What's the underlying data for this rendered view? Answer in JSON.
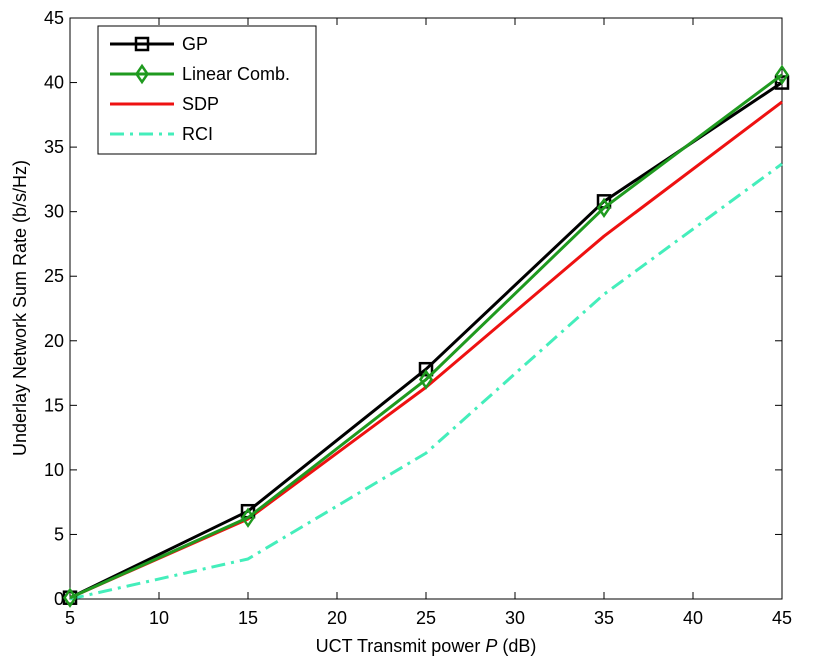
{
  "chart_data": {
    "type": "line",
    "title": "",
    "xlabel": "UCT Transmit power",
    "xlabel_var": "P",
    "xlabel_unit": "(dB)",
    "ylabel": "Underlay Network Sum Rate (b/s/Hz)",
    "xlim": [
      5,
      45
    ],
    "ylim": [
      0,
      45
    ],
    "xticks": [
      5,
      10,
      15,
      20,
      25,
      30,
      35,
      40,
      45
    ],
    "yticks": [
      0,
      5,
      10,
      15,
      20,
      25,
      30,
      35,
      40,
      45
    ],
    "grid": false,
    "legend_position": "top-left",
    "x": [
      5,
      15,
      25,
      35,
      45
    ],
    "series": [
      {
        "name": "GP",
        "values": [
          0.1,
          6.8,
          17.8,
          30.8,
          40.0
        ],
        "color": "#000000",
        "marker": "square",
        "dash": "solid"
      },
      {
        "name": "Linear Comb.",
        "values": [
          0.1,
          6.3,
          17.0,
          30.3,
          40.6
        ],
        "color": "#1f9a1f",
        "marker": "diamond",
        "dash": "solid"
      },
      {
        "name": "SDP",
        "values": [
          0.1,
          6.2,
          16.4,
          28.1,
          38.5
        ],
        "color": "#ee1111",
        "marker": "none",
        "dash": "solid"
      },
      {
        "name": "RCI",
        "values": [
          0.0,
          3.1,
          11.3,
          23.6,
          33.7
        ],
        "color": "#44eebb",
        "marker": "none",
        "dash": "dashdot"
      }
    ]
  }
}
